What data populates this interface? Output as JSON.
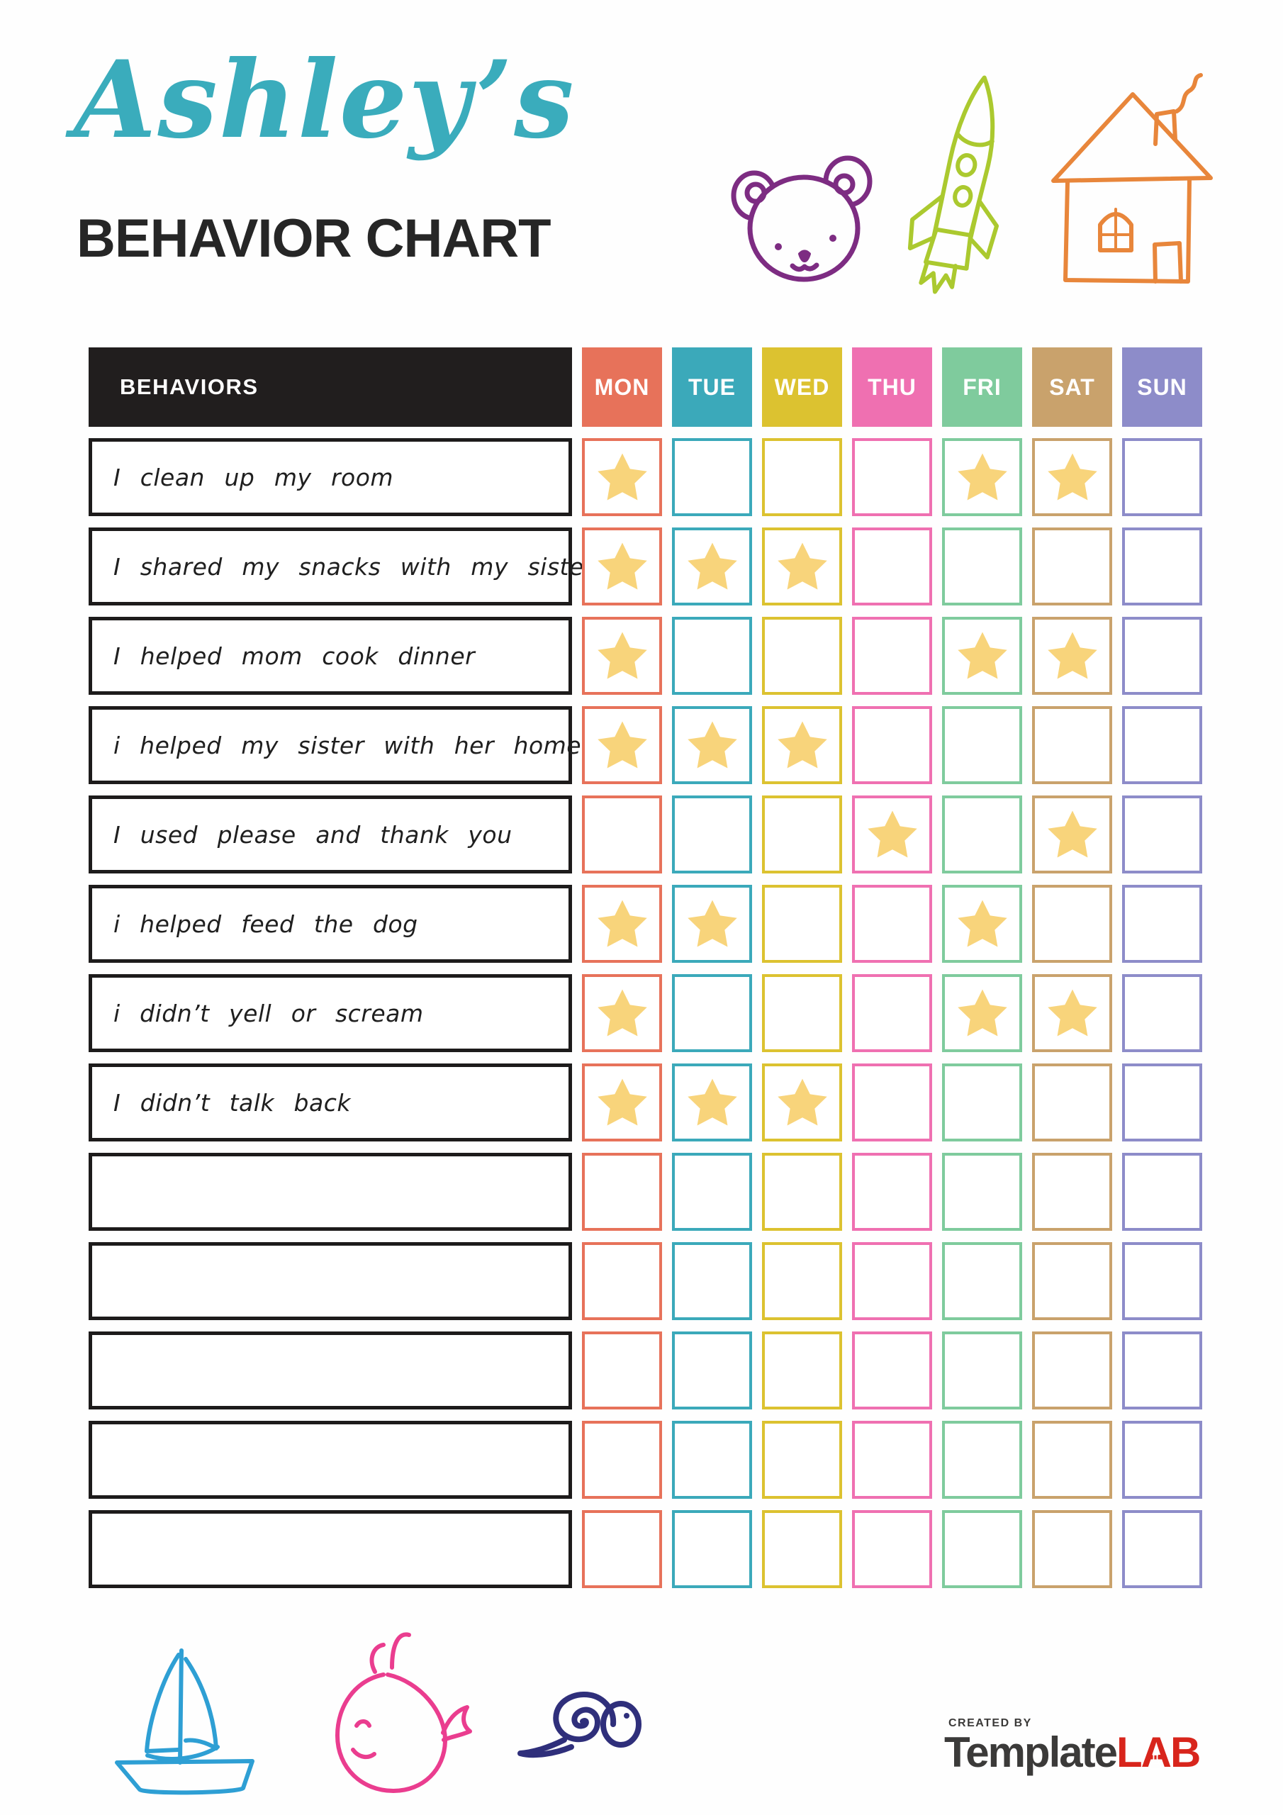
{
  "header": {
    "name": "Ashley’s",
    "title": "BEHAVIOR CHART",
    "name_color": "#3aacbc",
    "title_color": "#262626"
  },
  "doodles": {
    "bear_color": "#7d2c82",
    "rocket_color": "#abc92f",
    "house_color": "#e8863b",
    "sailboat_color": "#2e9fd4",
    "whale_color": "#ea3d8f",
    "snail_color": "#2f2f7b"
  },
  "table": {
    "behaviors_header": "BEHAVIORS",
    "header_bg": "#211e1e",
    "row_border": "#1d1b1b",
    "star_color": "#f8d47b",
    "days": [
      {
        "label": "MON",
        "color": "#e7725a"
      },
      {
        "label": "TUE",
        "color": "#3ba9ba"
      },
      {
        "label": "WED",
        "color": "#dcc230"
      },
      {
        "label": "THU",
        "color": "#ef70b1"
      },
      {
        "label": "FRI",
        "color": "#7fcb9d"
      },
      {
        "label": "SAT",
        "color": "#c9a26c"
      },
      {
        "label": "SUN",
        "color": "#8d8cc9"
      }
    ],
    "rows": [
      {
        "behavior": "I clean up my room",
        "stars": [
          "MON",
          "FRI",
          "SAT"
        ]
      },
      {
        "behavior": "I shared my snacks with my sister",
        "stars": [
          "MON",
          "TUE",
          "WED"
        ]
      },
      {
        "behavior": "I helped mom cook dinner",
        "stars": [
          "MON",
          "FRI",
          "SAT"
        ]
      },
      {
        "behavior": "i helped my sister with her homework",
        "stars": [
          "MON",
          "TUE",
          "WED"
        ]
      },
      {
        "behavior": "I used please and thank you",
        "stars": [
          "THU",
          "SAT"
        ]
      },
      {
        "behavior": "i helped feed the dog",
        "stars": [
          "MON",
          "TUE",
          "FRI"
        ]
      },
      {
        "behavior": "i didn’t yell or scream",
        "stars": [
          "MON",
          "FRI",
          "SAT"
        ]
      },
      {
        "behavior": "I didn’t talk back",
        "stars": [
          "MON",
          "TUE",
          "WED"
        ]
      },
      {
        "behavior": "",
        "stars": []
      },
      {
        "behavior": "",
        "stars": []
      },
      {
        "behavior": "",
        "stars": []
      },
      {
        "behavior": "",
        "stars": []
      },
      {
        "behavior": "",
        "stars": []
      }
    ]
  },
  "footer": {
    "created_by": "CREATED BY",
    "brand_template": "Template",
    "lab_letters": [
      "L",
      "A",
      "B"
    ],
    "brand_color_dark": "#3b3a39",
    "brand_color_red": "#d8251c"
  }
}
